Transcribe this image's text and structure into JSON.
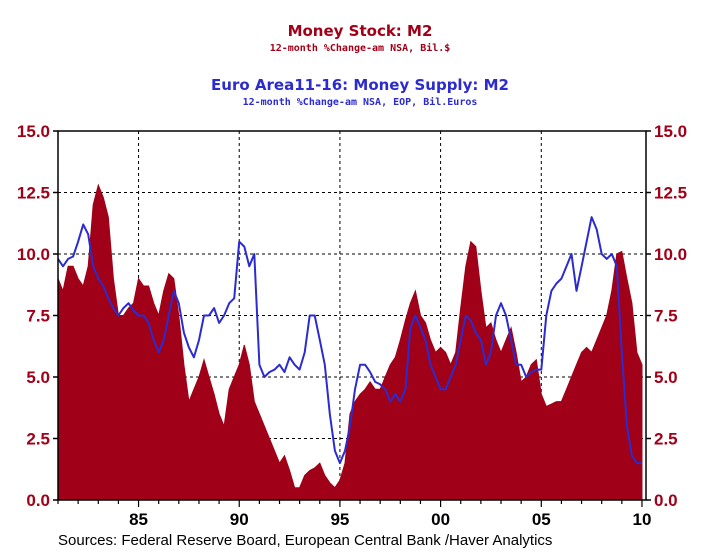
{
  "chart_data": {
    "type": "area+line",
    "series": [
      {
        "name": "Money Stock: M2",
        "subtitle": "12-month %Change-am    NSA, Bil.$",
        "style": "area",
        "color": "#A00018",
        "x": [
          1981.0,
          1981.25,
          1981.5,
          1981.75,
          1982.0,
          1982.25,
          1982.5,
          1982.75,
          1983.0,
          1983.25,
          1983.5,
          1983.75,
          1984.0,
          1984.25,
          1984.5,
          1984.75,
          1985.0,
          1985.25,
          1985.5,
          1985.75,
          1986.0,
          1986.25,
          1986.5,
          1986.75,
          1987.0,
          1987.25,
          1987.5,
          1987.75,
          1988.0,
          1988.25,
          1988.5,
          1988.75,
          1989.0,
          1989.25,
          1989.5,
          1989.75,
          1990.0,
          1990.25,
          1990.5,
          1990.75,
          1991.0,
          1991.25,
          1991.5,
          1991.75,
          1992.0,
          1992.25,
          1992.5,
          1992.75,
          1993.0,
          1993.25,
          1993.5,
          1993.75,
          1994.0,
          1994.25,
          1994.5,
          1994.75,
          1995.0,
          1995.25,
          1995.5,
          1995.75,
          1996.0,
          1996.25,
          1996.5,
          1996.75,
          1997.0,
          1997.25,
          1997.5,
          1997.75,
          1998.0,
          1998.25,
          1998.5,
          1998.75,
          1999.0,
          1999.25,
          1999.5,
          1999.75,
          2000.0,
          2000.25,
          2000.5,
          2000.75,
          2001.0,
          2001.25,
          2001.5,
          2001.75,
          2002.0,
          2002.25,
          2002.5,
          2002.75,
          2003.0,
          2003.25,
          2003.5,
          2003.75,
          2004.0,
          2004.25,
          2004.5,
          2004.75,
          2005.0,
          2005.25,
          2005.5,
          2005.75,
          2006.0,
          2006.25,
          2006.5,
          2006.75,
          2007.0,
          2007.25,
          2007.5,
          2007.75,
          2008.0,
          2008.25,
          2008.5,
          2008.75,
          2009.0,
          2009.25,
          2009.5,
          2009.75,
          2010.0
        ],
        "values": [
          9.0,
          8.5,
          9.5,
          9.5,
          9.0,
          8.7,
          9.5,
          12.0,
          12.8,
          12.3,
          11.5,
          9.0,
          7.5,
          7.5,
          7.8,
          8.0,
          9.0,
          8.7,
          8.7,
          8.0,
          7.5,
          8.5,
          9.2,
          9.0,
          7.5,
          5.5,
          4.0,
          4.5,
          5.0,
          5.7,
          5.0,
          4.3,
          3.5,
          3.0,
          4.5,
          5.0,
          5.5,
          6.3,
          5.5,
          4.0,
          3.5,
          3.0,
          2.5,
          2.0,
          1.5,
          1.8,
          1.2,
          0.5,
          0.5,
          1.0,
          1.2,
          1.3,
          1.5,
          1.0,
          0.7,
          0.5,
          0.8,
          1.5,
          3.5,
          4.0,
          4.3,
          4.5,
          4.8,
          4.5,
          4.5,
          5.0,
          5.5,
          5.8,
          6.5,
          7.3,
          8.0,
          8.5,
          7.5,
          7.2,
          6.5,
          6.0,
          6.2,
          6.0,
          5.5,
          6.0,
          7.8,
          9.5,
          10.5,
          10.3,
          8.5,
          7.0,
          7.2,
          6.5,
          6.0,
          6.5,
          7.0,
          6.0,
          4.8,
          5.0,
          5.5,
          5.7,
          4.3,
          3.8,
          3.9,
          4.0,
          4.0,
          4.5,
          5.0,
          5.5,
          6.0,
          6.2,
          6.0,
          6.5,
          7.0,
          7.5,
          8.5,
          10.0,
          10.1,
          9.0,
          8.0,
          6.0,
          5.5
        ]
      },
      {
        "name": "Euro Area11-16: Money Supply: M2",
        "subtitle": "12-month %Change-am    NSA, EOP, Bil.Euros",
        "style": "line",
        "color": "#2B2BD0",
        "x": [
          1981.0,
          1981.25,
          1981.5,
          1981.75,
          1982.0,
          1982.25,
          1982.5,
          1982.75,
          1983.0,
          1983.25,
          1983.5,
          1983.75,
          1984.0,
          1984.25,
          1984.5,
          1984.75,
          1985.0,
          1985.25,
          1985.5,
          1985.75,
          1986.0,
          1986.25,
          1986.5,
          1986.75,
          1987.0,
          1987.25,
          1987.5,
          1987.75,
          1988.0,
          1988.25,
          1988.5,
          1988.75,
          1989.0,
          1989.25,
          1989.5,
          1989.75,
          1990.0,
          1990.25,
          1990.5,
          1990.75,
          1991.0,
          1991.25,
          1991.5,
          1991.75,
          1992.0,
          1992.25,
          1992.5,
          1992.75,
          1993.0,
          1993.25,
          1993.5,
          1993.75,
          1994.0,
          1994.25,
          1994.5,
          1994.75,
          1995.0,
          1995.25,
          1995.5,
          1995.75,
          1996.0,
          1996.25,
          1996.5,
          1996.75,
          1997.0,
          1997.25,
          1997.5,
          1997.75,
          1998.0,
          1998.25,
          1998.5,
          1998.75,
          1999.0,
          1999.25,
          1999.5,
          1999.75,
          2000.0,
          2000.25,
          2000.5,
          2000.75,
          2001.0,
          2001.25,
          2001.5,
          2001.75,
          2002.0,
          2002.25,
          2002.5,
          2002.75,
          2003.0,
          2003.25,
          2003.5,
          2003.75,
          2004.0,
          2004.25,
          2004.5,
          2004.75,
          2005.0,
          2005.25,
          2005.5,
          2005.75,
          2006.0,
          2006.25,
          2006.5,
          2006.75,
          2007.0,
          2007.25,
          2007.5,
          2007.75,
          2008.0,
          2008.25,
          2008.5,
          2008.75,
          2009.0,
          2009.25,
          2009.5,
          2009.75,
          2010.0
        ],
        "values": [
          9.8,
          9.5,
          9.8,
          9.9,
          10.5,
          11.2,
          10.8,
          9.5,
          9.0,
          8.7,
          8.2,
          7.8,
          7.5,
          7.8,
          8.0,
          7.7,
          7.5,
          7.5,
          7.2,
          6.5,
          6.0,
          6.5,
          7.5,
          8.5,
          8.0,
          6.8,
          6.2,
          5.8,
          6.5,
          7.5,
          7.5,
          7.8,
          7.2,
          7.5,
          8.0,
          8.2,
          10.5,
          10.3,
          9.5,
          10.0,
          5.5,
          5.0,
          5.2,
          5.3,
          5.5,
          5.2,
          5.8,
          5.5,
          5.3,
          6.0,
          7.5,
          7.5,
          6.5,
          5.5,
          3.5,
          2.0,
          1.5,
          2.0,
          3.0,
          4.5,
          5.5,
          5.5,
          5.2,
          4.8,
          4.7,
          4.5,
          4.0,
          4.3,
          4.0,
          4.5,
          7.0,
          7.5,
          7.0,
          6.5,
          5.5,
          5.0,
          4.5,
          4.5,
          5.0,
          5.5,
          6.5,
          7.5,
          7.3,
          6.8,
          6.5,
          5.5,
          6.0,
          7.5,
          8.0,
          7.5,
          6.5,
          5.5,
          5.5,
          5.0,
          5.2,
          5.3,
          5.3,
          7.5,
          8.5,
          8.8,
          9.0,
          9.5,
          10.0,
          8.5,
          9.5,
          10.5,
          11.5,
          11.0,
          10.0,
          9.8,
          10.0,
          9.5,
          6.0,
          3.0,
          1.8,
          1.5,
          1.5
        ]
      }
    ],
    "xlim": [
      1981.0,
      2010.2
    ],
    "ylim": [
      0.0,
      15.0
    ],
    "x_ticks": [
      {
        "value": 1985,
        "label": "85"
      },
      {
        "value": 1990,
        "label": "90"
      },
      {
        "value": 1995,
        "label": "95"
      },
      {
        "value": 2000,
        "label": "00"
      },
      {
        "value": 2005,
        "label": "05"
      },
      {
        "value": 2010,
        "label": "10"
      }
    ],
    "y_ticks": [
      0.0,
      2.5,
      5.0,
      7.5,
      10.0,
      12.5,
      15.0
    ],
    "y_tick_labels": [
      "0.0",
      "2.5",
      "5.0",
      "7.5",
      "10.0",
      "12.5",
      "15.0"
    ],
    "grid": "dashed",
    "axis_color": "#A00018",
    "source": "Sources:  Federal Reserve Board, European Central Bank /Haver Analytics"
  }
}
